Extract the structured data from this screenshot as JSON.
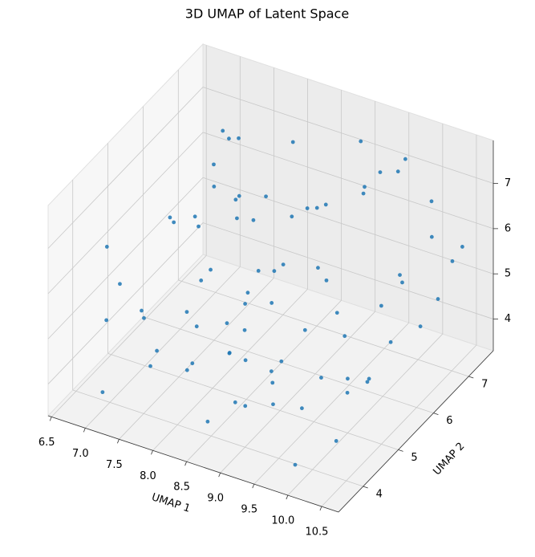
{
  "chart_data": {
    "type": "scatter3d",
    "title": "3D UMAP of Latent Space",
    "x_label": "UMAP 1",
    "y_label": "UMAP 2",
    "color": "#1f77b4",
    "grid": true,
    "xlim": [
      6.45,
      10.75
    ],
    "ylim": [
      3.3,
      7.7
    ],
    "zlim": [
      3.3,
      7.95
    ],
    "xticks": [
      6.5,
      {
        "value": 7,
        "label": "7.0"
      },
      7.5,
      {
        "value": 8,
        "label": "8.0"
      },
      8.5,
      {
        "value": 9,
        "label": "9.0"
      },
      9.5,
      {
        "value": 10,
        "label": "10.0"
      },
      10.5
    ],
    "yticks": [
      4,
      5,
      6,
      7
    ],
    "zticks": [
      4,
      5,
      6,
      7
    ],
    "x": [
      7.1,
      7.4,
      8.2,
      9.0,
      9.6,
      10.1,
      7.8,
      8.5,
      9.3,
      10.4,
      6.9,
      7.6,
      8.8,
      9.9,
      10.2,
      7.3,
      8.0,
      8.9,
      9.5,
      10.5,
      7.0,
      7.7,
      8.4,
      9.1,
      9.8,
      10.3,
      7.5,
      8.1,
      8.7,
      9.4,
      10.0,
      7.2,
      7.9,
      8.6,
      9.2,
      9.7,
      10.6,
      6.8,
      8.3,
      9.0,
      7.4,
      8.0,
      8.8,
      9.6,
      10.2,
      7.1,
      7.8,
      8.5,
      9.3,
      10.0,
      6.9,
      7.6,
      8.2,
      9.0,
      9.8,
      10.4,
      7.3,
      8.1,
      8.9,
      9.5,
      7.0,
      7.7,
      8.6,
      9.2,
      10.1,
      7.5,
      8.3,
      9.1,
      9.9,
      10.5,
      7.2,
      8.0,
      8.7,
      9.4,
      10.3,
      6.8,
      7.9,
      8.4,
      9.7,
      10.0
    ],
    "y": [
      3.6,
      4.2,
      5.1,
      6.3,
      7.2,
      4.8,
      6.9,
      3.9,
      5.5,
      6.8,
      7.4,
      5.8,
      4.4,
      3.7,
      6.1,
      7.0,
      4.6,
      5.9,
      3.8,
      7.3,
      4.9,
      6.5,
      3.5,
      7.1,
      5.3,
      4.1,
      6.0,
      7.5,
      4.3,
      6.6,
      5.0,
      3.9,
      7.2,
      5.6,
      4.0,
      6.8,
      5.4,
      6.2,
      3.7,
      7.4,
      5.7,
      4.5,
      6.7,
      3.6,
      7.0,
      6.4,
      3.8,
      5.2,
      7.3,
      4.7,
      5.9,
      4.0,
      6.9,
      4.8,
      3.5,
      6.3,
      7.1,
      5.5,
      4.2,
      7.6,
      3.9,
      5.0,
      6.1,
      4.4,
      7.2,
      6.7,
      4.9,
      3.8,
      5.8,
      4.6,
      7.0,
      6.0,
      3.6,
      5.4,
      7.4,
      4.3,
      5.6,
      7.2,
      6.5,
      3.7
    ],
    "z": [
      3.9,
      5.2,
      4.1,
      6.8,
      7.1,
      4.4,
      5.9,
      3.7,
      6.2,
      5.0,
      6.5,
      7.4,
      4.8,
      3.6,
      6.0,
      5.5,
      7.2,
      4.3,
      6.9,
      5.8,
      4.6,
      3.8,
      6.4,
      7.6,
      5.1,
      4.0,
      6.7,
      5.3,
      3.9,
      7.0,
      4.5,
      6.1,
      4.2,
      5.7,
      7.3,
      3.7,
      6.6,
      5.4,
      4.9,
      6.3,
      3.8,
      7.5,
      4.7,
      5.6,
      6.9,
      4.1,
      5.0,
      7.1,
      3.9,
      6.2,
      5.8,
      4.4,
      7.3,
      3.6,
      6.0,
      4.8,
      5.5,
      6.7,
      4.0,
      7.0,
      5.2,
      3.7,
      6.5,
      4.5,
      5.9,
      7.2,
      4.3,
      6.1,
      3.8,
      5.0,
      6.8,
      4.6,
      7.4,
      3.9,
      5.3,
      6.4,
      4.2,
      5.7,
      7.7,
      4.9
    ]
  }
}
